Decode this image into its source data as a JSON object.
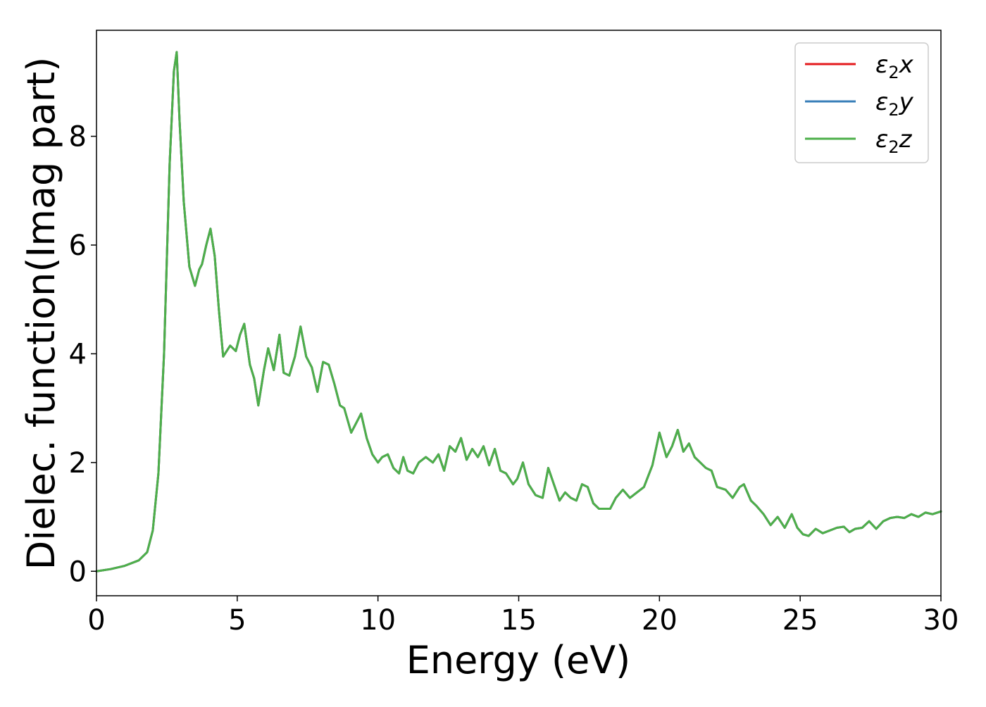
{
  "chart_data": {
    "type": "line",
    "title": "",
    "xlabel": "Energy (eV)",
    "ylabel": "Dielec. function(Imag part)",
    "xlim": [
      0,
      30
    ],
    "ylim": [
      -0.45,
      9.95
    ],
    "xticks": [
      0,
      5,
      10,
      15,
      20,
      25,
      30
    ],
    "yticks": [
      0,
      2,
      4,
      6,
      8
    ],
    "grid": false,
    "legend_position": "top-right",
    "x": [
      0,
      0.5,
      1.0,
      1.5,
      1.8,
      2.0,
      2.2,
      2.4,
      2.6,
      2.75,
      2.85,
      2.95,
      3.1,
      3.3,
      3.5,
      3.65,
      3.75,
      3.9,
      4.05,
      4.2,
      4.35,
      4.5,
      4.75,
      4.95,
      5.1,
      5.25,
      5.45,
      5.6,
      5.75,
      5.95,
      6.1,
      6.3,
      6.5,
      6.65,
      6.85,
      7.05,
      7.25,
      7.45,
      7.65,
      7.85,
      8.05,
      8.25,
      8.45,
      8.65,
      8.8,
      9.05,
      9.2,
      9.4,
      9.6,
      9.8,
      10.0,
      10.15,
      10.35,
      10.55,
      10.75,
      10.9,
      11.05,
      11.25,
      11.45,
      11.7,
      11.95,
      12.15,
      12.35,
      12.55,
      12.75,
      12.95,
      13.15,
      13.35,
      13.55,
      13.75,
      13.95,
      14.15,
      14.35,
      14.55,
      14.8,
      14.95,
      15.15,
      15.35,
      15.6,
      15.85,
      16.05,
      16.25,
      16.45,
      16.65,
      16.85,
      17.05,
      17.25,
      17.45,
      17.65,
      17.85,
      18.05,
      18.25,
      18.45,
      18.7,
      18.95,
      19.2,
      19.45,
      19.75,
      20.0,
      20.25,
      20.45,
      20.65,
      20.85,
      21.05,
      21.25,
      21.45,
      21.65,
      21.85,
      22.05,
      22.35,
      22.6,
      22.85,
      23.0,
      23.25,
      23.45,
      23.7,
      23.95,
      24.2,
      24.45,
      24.7,
      24.9,
      25.1,
      25.3,
      25.55,
      25.8,
      26.05,
      26.3,
      26.55,
      26.75,
      26.95,
      27.2,
      27.45,
      27.7,
      27.95,
      28.2,
      28.45,
      28.7,
      28.95,
      29.2,
      29.45,
      29.7,
      30.0
    ],
    "series": [
      {
        "name": "ε₂x",
        "color": "#e41a1c",
        "y": [
          0,
          0.04,
          0.1,
          0.2,
          0.35,
          0.75,
          1.8,
          4.0,
          7.5,
          9.2,
          9.55,
          8.3,
          6.8,
          5.6,
          5.25,
          5.55,
          5.65,
          6.0,
          6.3,
          5.8,
          4.8,
          3.95,
          4.15,
          4.05,
          4.35,
          4.55,
          3.8,
          3.55,
          3.05,
          3.7,
          4.1,
          3.7,
          4.35,
          3.65,
          3.6,
          3.95,
          4.5,
          3.95,
          3.75,
          3.3,
          3.85,
          3.8,
          3.45,
          3.05,
          3.0,
          2.55,
          2.7,
          2.9,
          2.45,
          2.15,
          2.0,
          2.1,
          2.15,
          1.9,
          1.8,
          2.1,
          1.85,
          1.8,
          2.0,
          2.1,
          2.0,
          2.15,
          1.85,
          2.3,
          2.2,
          2.45,
          2.05,
          2.25,
          2.1,
          2.3,
          1.95,
          2.25,
          1.85,
          1.8,
          1.6,
          1.7,
          2.0,
          1.6,
          1.4,
          1.35,
          1.9,
          1.6,
          1.3,
          1.45,
          1.35,
          1.3,
          1.6,
          1.55,
          1.25,
          1.15,
          1.15,
          1.15,
          1.35,
          1.5,
          1.35,
          1.45,
          1.55,
          1.95,
          2.55,
          2.1,
          2.3,
          2.6,
          2.2,
          2.35,
          2.1,
          2.0,
          1.9,
          1.85,
          1.55,
          1.5,
          1.35,
          1.55,
          1.6,
          1.3,
          1.2,
          1.05,
          0.85,
          1.0,
          0.8,
          1.05,
          0.8,
          0.68,
          0.65,
          0.78,
          0.7,
          0.75,
          0.8,
          0.82,
          0.72,
          0.78,
          0.8,
          0.92,
          0.78,
          0.92,
          0.98,
          1.0,
          0.98,
          1.05,
          1.0,
          1.08,
          1.05,
          1.1
        ]
      },
      {
        "name": "ε₂y",
        "color": "#377eb8",
        "y": [
          0,
          0.04,
          0.1,
          0.2,
          0.35,
          0.75,
          1.8,
          4.0,
          7.5,
          9.2,
          9.55,
          8.3,
          6.8,
          5.6,
          5.25,
          5.55,
          5.65,
          6.0,
          6.3,
          5.8,
          4.8,
          3.95,
          4.15,
          4.05,
          4.35,
          4.55,
          3.8,
          3.55,
          3.05,
          3.7,
          4.1,
          3.7,
          4.35,
          3.65,
          3.6,
          3.95,
          4.5,
          3.95,
          3.75,
          3.3,
          3.85,
          3.8,
          3.45,
          3.05,
          3.0,
          2.55,
          2.7,
          2.9,
          2.45,
          2.15,
          2.0,
          2.1,
          2.15,
          1.9,
          1.8,
          2.1,
          1.85,
          1.8,
          2.0,
          2.1,
          2.0,
          2.15,
          1.85,
          2.3,
          2.2,
          2.45,
          2.05,
          2.25,
          2.1,
          2.3,
          1.95,
          2.25,
          1.85,
          1.8,
          1.6,
          1.7,
          2.0,
          1.6,
          1.4,
          1.35,
          1.9,
          1.6,
          1.3,
          1.45,
          1.35,
          1.3,
          1.6,
          1.55,
          1.25,
          1.15,
          1.15,
          1.15,
          1.35,
          1.5,
          1.35,
          1.45,
          1.55,
          1.95,
          2.55,
          2.1,
          2.3,
          2.6,
          2.2,
          2.35,
          2.1,
          2.0,
          1.9,
          1.85,
          1.55,
          1.5,
          1.35,
          1.55,
          1.6,
          1.3,
          1.2,
          1.05,
          0.85,
          1.0,
          0.8,
          1.05,
          0.8,
          0.68,
          0.65,
          0.78,
          0.7,
          0.75,
          0.8,
          0.82,
          0.72,
          0.78,
          0.8,
          0.92,
          0.78,
          0.92,
          0.98,
          1.0,
          0.98,
          1.05,
          1.0,
          1.08,
          1.05,
          1.1
        ]
      },
      {
        "name": "ε₂z",
        "color": "#4daf4a",
        "y": [
          0,
          0.04,
          0.1,
          0.2,
          0.35,
          0.75,
          1.8,
          4.0,
          7.5,
          9.2,
          9.55,
          8.3,
          6.8,
          5.6,
          5.25,
          5.55,
          5.65,
          6.0,
          6.3,
          5.8,
          4.8,
          3.95,
          4.15,
          4.05,
          4.35,
          4.55,
          3.8,
          3.55,
          3.05,
          3.7,
          4.1,
          3.7,
          4.35,
          3.65,
          3.6,
          3.95,
          4.5,
          3.95,
          3.75,
          3.3,
          3.85,
          3.8,
          3.45,
          3.05,
          3.0,
          2.55,
          2.7,
          2.9,
          2.45,
          2.15,
          2.0,
          2.1,
          2.15,
          1.9,
          1.8,
          2.1,
          1.85,
          1.8,
          2.0,
          2.1,
          2.0,
          2.15,
          1.85,
          2.3,
          2.2,
          2.45,
          2.05,
          2.25,
          2.1,
          2.3,
          1.95,
          2.25,
          1.85,
          1.8,
          1.6,
          1.7,
          2.0,
          1.6,
          1.4,
          1.35,
          1.9,
          1.6,
          1.3,
          1.45,
          1.35,
          1.3,
          1.6,
          1.55,
          1.25,
          1.15,
          1.15,
          1.15,
          1.35,
          1.5,
          1.35,
          1.45,
          1.55,
          1.95,
          2.55,
          2.1,
          2.3,
          2.6,
          2.2,
          2.35,
          2.1,
          2.0,
          1.9,
          1.85,
          1.55,
          1.5,
          1.35,
          1.55,
          1.6,
          1.3,
          1.2,
          1.05,
          0.85,
          1.0,
          0.8,
          1.05,
          0.8,
          0.68,
          0.65,
          0.78,
          0.7,
          0.75,
          0.8,
          0.82,
          0.72,
          0.78,
          0.8,
          0.92,
          0.78,
          0.92,
          0.98,
          1.0,
          0.98,
          1.05,
          1.0,
          1.08,
          1.05,
          1.1
        ]
      }
    ]
  },
  "legend": {
    "items": [
      {
        "base": "ε",
        "sub": "2",
        "var": "x",
        "color": "#e41a1c"
      },
      {
        "base": "ε",
        "sub": "2",
        "var": "y",
        "color": "#377eb8"
      },
      {
        "base": "ε",
        "sub": "2",
        "var": "z",
        "color": "#4daf4a"
      }
    ]
  }
}
